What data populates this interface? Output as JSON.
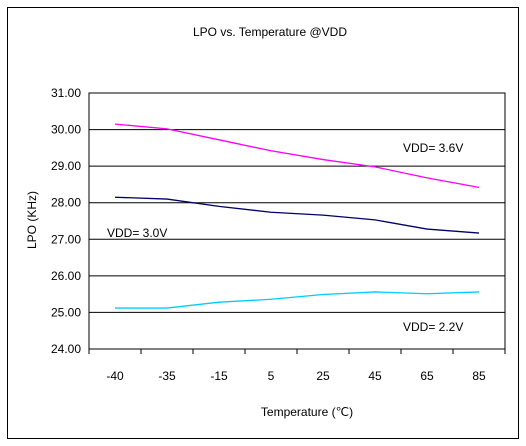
{
  "chart_data": {
    "type": "line",
    "title": "LPO vs. Temperature @VDD",
    "xlabel": "Temperature (℃)",
    "ylabel": "LPO (KHz)",
    "categories": [
      "-40",
      "-35",
      "-15",
      "5",
      "25",
      "45",
      "65",
      "85"
    ],
    "ylim": [
      24,
      31
    ],
    "yticks": [
      "24.00",
      "25.00",
      "26.00",
      "27.00",
      "28.00",
      "29.00",
      "30.00",
      "31.00"
    ],
    "grid": true,
    "series": [
      {
        "name": "VDD= 3.6V",
        "color": "#ff00ff",
        "values": [
          30.15,
          30.02,
          29.72,
          29.42,
          29.18,
          28.98,
          28.68,
          28.42
        ]
      },
      {
        "name": "VDD= 3.0V",
        "color": "#000066",
        "values": [
          28.15,
          28.1,
          27.9,
          27.74,
          27.66,
          27.53,
          27.28,
          27.17
        ]
      },
      {
        "name": "VDD= 2.2V",
        "color": "#00ccff",
        "values": [
          25.12,
          25.12,
          25.28,
          25.36,
          25.49,
          25.56,
          25.51,
          25.56
        ]
      }
    ]
  }
}
